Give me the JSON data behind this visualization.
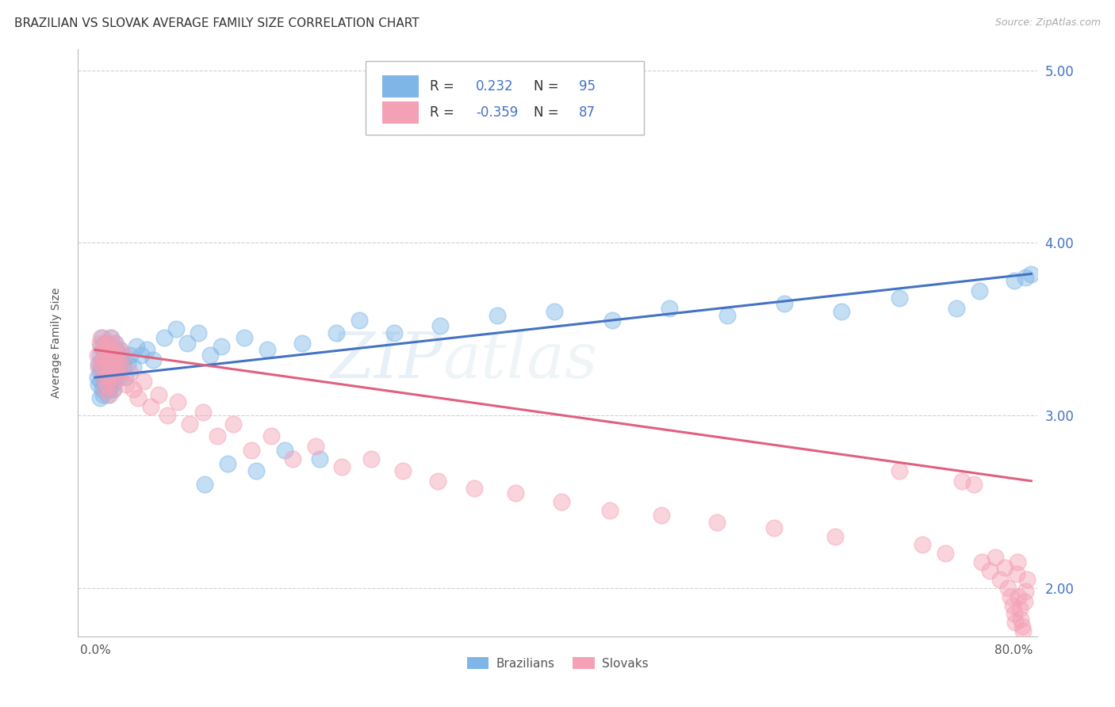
{
  "title": "BRAZILIAN VS SLOVAK AVERAGE FAMILY SIZE CORRELATION CHART",
  "source": "Source: ZipAtlas.com",
  "ylabel": "Average Family Size",
  "yticks_right": [
    2.0,
    3.0,
    4.0,
    5.0
  ],
  "xticks": [
    0.0,
    0.1,
    0.2,
    0.3,
    0.4,
    0.5,
    0.6,
    0.7,
    0.8
  ],
  "xlim": [
    -0.015,
    0.82
  ],
  "ylim": [
    1.72,
    5.12
  ],
  "blue_R": 0.232,
  "blue_N": 95,
  "pink_R": -0.359,
  "pink_N": 87,
  "blue_color": "#7EB6E8",
  "pink_color": "#F4A0B5",
  "blue_line_color": "#4472C4",
  "pink_line_color": "#E06080",
  "watermark_zip_color": "#7AB0D8",
  "watermark_atlas_color": "#A8C8D8",
  "background_color": "#FFFFFF",
  "grid_color": "#CCCCCC",
  "title_fontsize": 11,
  "source_fontsize": 9,
  "blue_scatter_x": [
    0.002,
    0.003,
    0.003,
    0.004,
    0.004,
    0.004,
    0.005,
    0.005,
    0.005,
    0.006,
    0.006,
    0.006,
    0.007,
    0.007,
    0.007,
    0.008,
    0.008,
    0.008,
    0.009,
    0.009,
    0.009,
    0.01,
    0.01,
    0.01,
    0.011,
    0.011,
    0.011,
    0.012,
    0.012,
    0.012,
    0.013,
    0.013,
    0.013,
    0.014,
    0.014,
    0.014,
    0.015,
    0.015,
    0.015,
    0.016,
    0.016,
    0.016,
    0.017,
    0.017,
    0.017,
    0.018,
    0.018,
    0.019,
    0.019,
    0.02,
    0.02,
    0.021,
    0.022,
    0.023,
    0.024,
    0.025,
    0.026,
    0.028,
    0.03,
    0.033,
    0.036,
    0.04,
    0.045,
    0.05,
    0.06,
    0.07,
    0.08,
    0.09,
    0.1,
    0.11,
    0.13,
    0.15,
    0.18,
    0.21,
    0.095,
    0.115,
    0.14,
    0.165,
    0.195,
    0.23,
    0.26,
    0.3,
    0.35,
    0.4,
    0.45,
    0.5,
    0.55,
    0.6,
    0.65,
    0.7,
    0.75,
    0.77,
    0.8,
    0.81,
    0.815
  ],
  "blue_scatter_y": [
    3.22,
    3.18,
    3.3,
    3.1,
    3.35,
    3.25,
    3.2,
    3.28,
    3.4,
    3.32,
    3.15,
    3.45,
    3.38,
    3.22,
    3.12,
    3.3,
    3.18,
    3.42,
    3.25,
    3.35,
    3.15,
    3.28,
    3.38,
    3.18,
    3.42,
    3.22,
    3.12,
    3.35,
    3.25,
    3.15,
    3.4,
    3.28,
    3.18,
    3.45,
    3.32,
    3.22,
    3.38,
    3.28,
    3.18,
    3.35,
    3.25,
    3.15,
    3.42,
    3.32,
    3.22,
    3.38,
    3.28,
    3.35,
    3.25,
    3.32,
    3.22,
    3.38,
    3.3,
    3.35,
    3.28,
    3.32,
    3.22,
    3.3,
    3.35,
    3.28,
    3.4,
    3.35,
    3.38,
    3.32,
    3.45,
    3.5,
    3.42,
    3.48,
    3.35,
    3.4,
    3.45,
    3.38,
    3.42,
    3.48,
    2.6,
    2.72,
    2.68,
    2.8,
    2.75,
    3.55,
    3.48,
    3.52,
    3.58,
    3.6,
    3.55,
    3.62,
    3.58,
    3.65,
    3.6,
    3.68,
    3.62,
    3.72,
    3.78,
    3.8,
    3.82
  ],
  "pink_scatter_x": [
    0.002,
    0.003,
    0.004,
    0.005,
    0.005,
    0.006,
    0.007,
    0.007,
    0.008,
    0.008,
    0.009,
    0.01,
    0.01,
    0.011,
    0.011,
    0.012,
    0.012,
    0.013,
    0.013,
    0.014,
    0.015,
    0.015,
    0.016,
    0.016,
    0.017,
    0.018,
    0.018,
    0.019,
    0.02,
    0.021,
    0.022,
    0.023,
    0.025,
    0.027,
    0.03,
    0.033,
    0.037,
    0.042,
    0.048,
    0.055,
    0.063,
    0.072,
    0.082,
    0.094,
    0.106,
    0.12,
    0.136,
    0.153,
    0.172,
    0.192,
    0.215,
    0.24,
    0.268,
    0.298,
    0.33,
    0.366,
    0.406,
    0.448,
    0.493,
    0.541,
    0.591,
    0.644,
    0.7,
    0.72,
    0.74,
    0.755,
    0.765,
    0.772,
    0.779,
    0.784,
    0.788,
    0.792,
    0.795,
    0.797,
    0.799,
    0.8,
    0.801,
    0.802,
    0.803,
    0.804,
    0.805,
    0.806,
    0.807,
    0.808,
    0.809,
    0.81,
    0.811
  ],
  "pink_scatter_y": [
    3.35,
    3.28,
    3.42,
    3.3,
    3.45,
    3.38,
    3.32,
    3.22,
    3.4,
    3.15,
    3.28,
    3.35,
    3.18,
    3.42,
    3.22,
    3.38,
    3.12,
    3.45,
    3.25,
    3.32,
    3.38,
    3.22,
    3.3,
    3.15,
    3.42,
    3.35,
    3.25,
    3.28,
    3.32,
    3.38,
    3.22,
    3.28,
    3.35,
    3.18,
    3.25,
    3.15,
    3.1,
    3.2,
    3.05,
    3.12,
    3.0,
    3.08,
    2.95,
    3.02,
    2.88,
    2.95,
    2.8,
    2.88,
    2.75,
    2.82,
    2.7,
    2.75,
    2.68,
    2.62,
    2.58,
    2.55,
    2.5,
    2.45,
    2.42,
    2.38,
    2.35,
    2.3,
    2.68,
    2.25,
    2.2,
    2.62,
    2.6,
    2.15,
    2.1,
    2.18,
    2.05,
    2.12,
    2.0,
    1.95,
    1.9,
    1.85,
    1.8,
    2.08,
    2.15,
    1.95,
    1.88,
    1.82,
    1.78,
    1.75,
    1.92,
    1.98,
    2.05
  ],
  "blue_line_x0": 0.0,
  "blue_line_x1": 0.815,
  "blue_line_y0": 3.22,
  "blue_line_y1": 3.82,
  "pink_line_x0": 0.0,
  "pink_line_x1": 0.815,
  "pink_line_y0": 3.38,
  "pink_line_y1": 2.62
}
